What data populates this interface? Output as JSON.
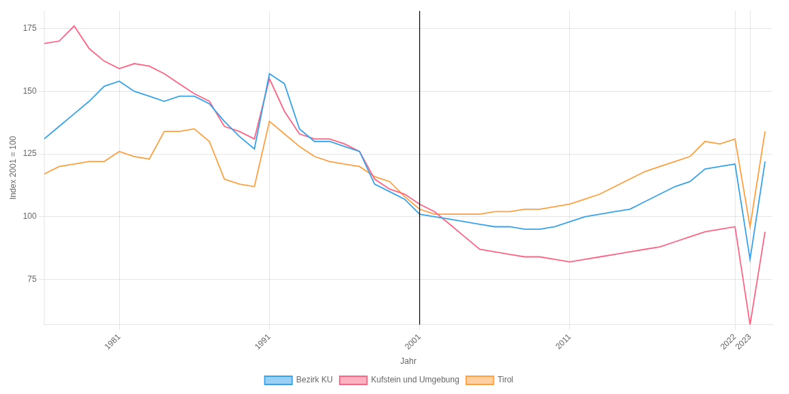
{
  "chart_data": {
    "type": "line",
    "xlabel": "Jahr",
    "ylabel": "Index 2001 = 100",
    "x": [
      1976,
      1977,
      1978,
      1979,
      1980,
      1981,
      1982,
      1983,
      1984,
      1985,
      1986,
      1987,
      1988,
      1989,
      1990,
      1991,
      1992,
      1993,
      1994,
      1995,
      1996,
      1997,
      1998,
      1999,
      2000,
      2001,
      2002,
      2003,
      2004,
      2005,
      2006,
      2007,
      2008,
      2009,
      2010,
      2011,
      2012,
      2013,
      2014,
      2015,
      2016,
      2017,
      2018,
      2019,
      2020,
      2021,
      2022,
      2023,
      2024
    ],
    "series": [
      {
        "name": "Bezirk KU",
        "values": [
          131,
          136,
          141,
          146,
          152,
          154,
          150,
          148,
          146,
          148,
          148,
          145,
          138,
          132,
          127,
          157,
          153,
          135,
          130,
          130,
          128,
          126,
          113,
          110,
          107,
          101,
          100,
          99,
          98,
          97,
          96,
          96,
          95,
          95,
          96,
          98,
          100,
          101,
          102,
          103,
          106,
          109,
          112,
          114,
          119,
          120,
          121,
          83,
          122
        ]
      },
      {
        "name": "Kufstein und Umgebung",
        "values": [
          169,
          170,
          176,
          167,
          162,
          159,
          161,
          160,
          157,
          153,
          149,
          146,
          136,
          134,
          131,
          155,
          142,
          133,
          131,
          131,
          129,
          126,
          115,
          111,
          109,
          105,
          102,
          97,
          92,
          87,
          86,
          85,
          84,
          84,
          83,
          82,
          83,
          84,
          85,
          86,
          87,
          88,
          90,
          92,
          94,
          95,
          96,
          57,
          94
        ]
      },
      {
        "name": "Tirol",
        "values": [
          117,
          120,
          121,
          122,
          122,
          126,
          124,
          123,
          134,
          134,
          135,
          130,
          115,
          113,
          112,
          138,
          133,
          128,
          124,
          122,
          121,
          120,
          116,
          114,
          108,
          103,
          101,
          101,
          101,
          101,
          102,
          102,
          103,
          103,
          104,
          105,
          107,
          109,
          112,
          115,
          118,
          120,
          122,
          124,
          130,
          129,
          131,
          96,
          134
        ]
      }
    ],
    "xlim": [
      1976,
      2024.5
    ],
    "ylim": [
      57,
      182
    ],
    "xticks": [
      1981,
      1991,
      2001,
      2011,
      2022,
      2023
    ],
    "yticks": [
      75,
      100,
      125,
      150,
      175
    ],
    "vline_x": 2001,
    "grid": true,
    "legend": "bottom"
  }
}
